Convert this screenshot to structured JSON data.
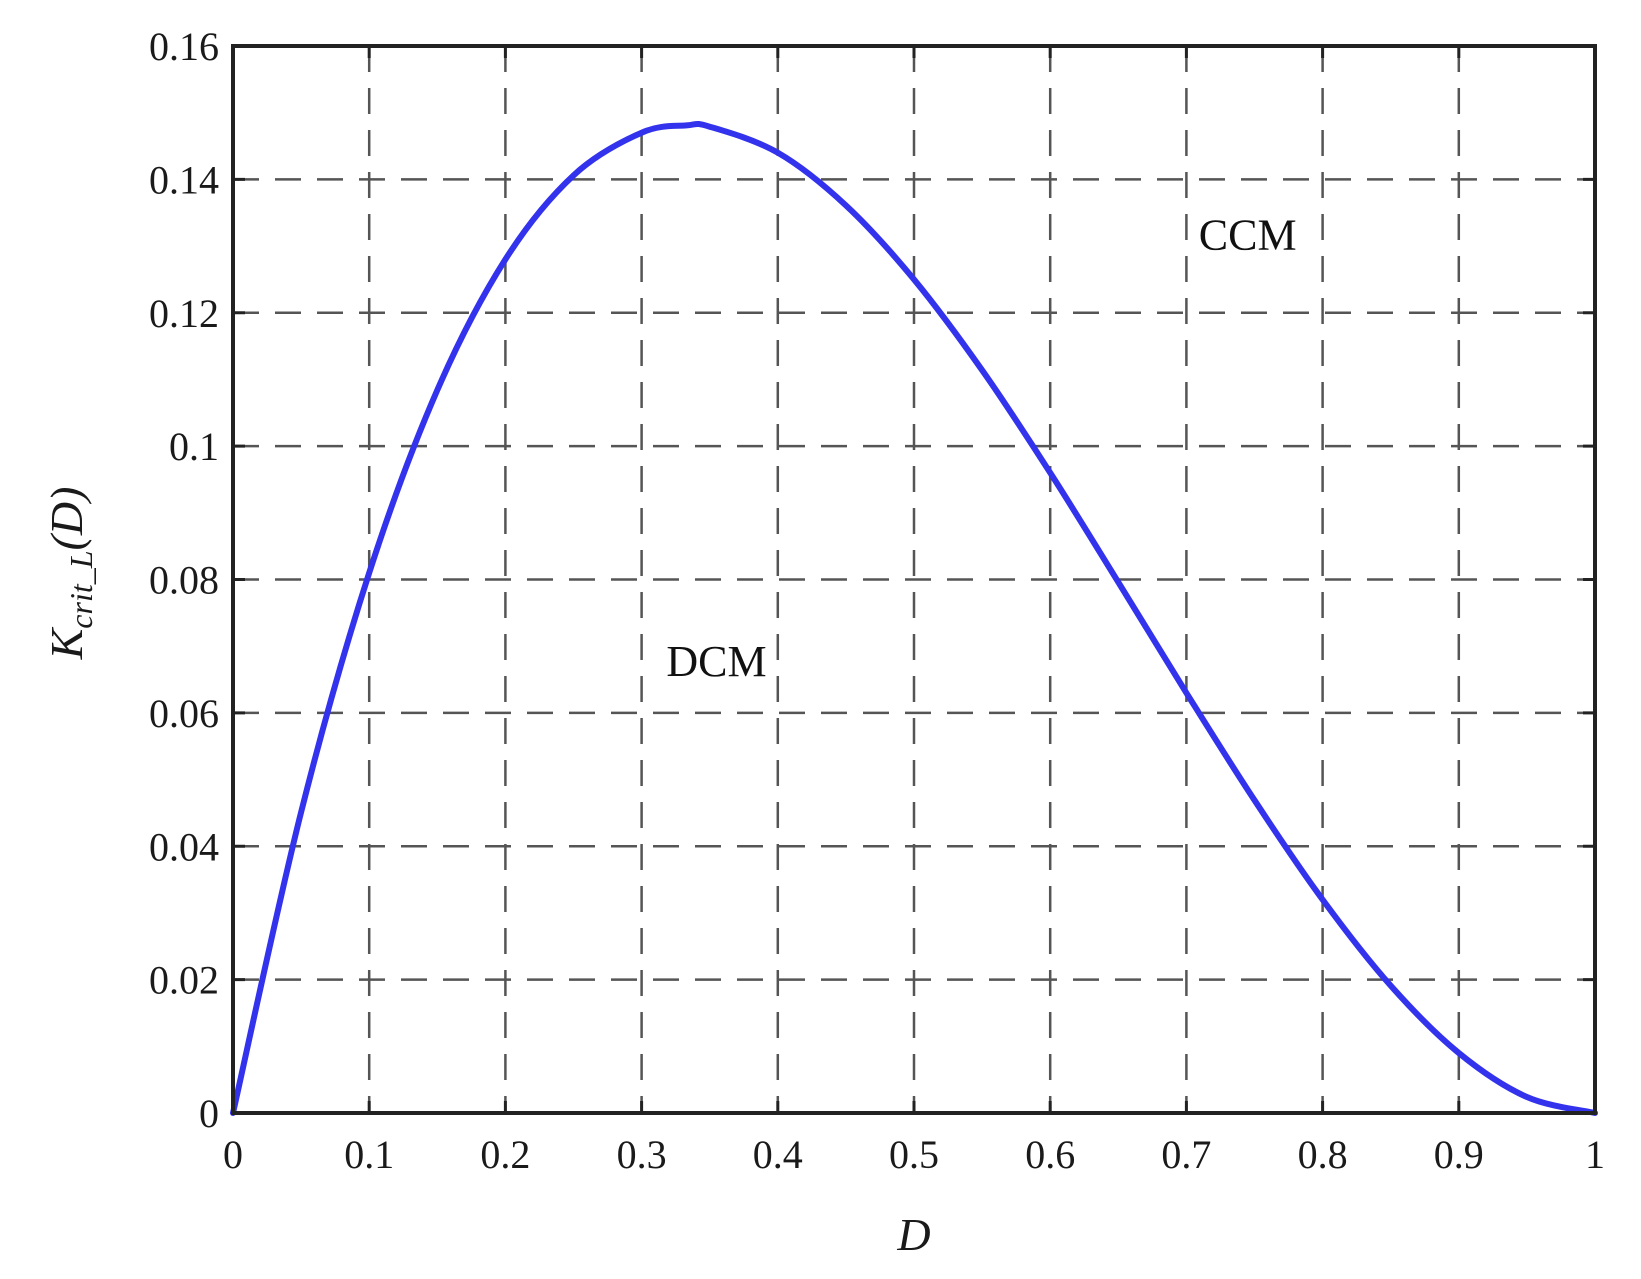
{
  "chart_data": {
    "type": "line",
    "title": "",
    "xlabel": "D",
    "ylabel": {
      "main": "K",
      "subscript": "crit_L",
      "suffix": "(D)"
    },
    "xlim": [
      0,
      1
    ],
    "ylim": [
      0,
      0.16
    ],
    "x_ticks": [
      0,
      0.1,
      0.2,
      0.3,
      0.4,
      0.5,
      0.6,
      0.7,
      0.8,
      0.9,
      1
    ],
    "x_tick_labels": [
      "0",
      "0.1",
      "0.2",
      "0.3",
      "0.4",
      "0.5",
      "0.6",
      "0.7",
      "0.8",
      "0.9",
      "1"
    ],
    "y_ticks": [
      0,
      0.02,
      0.04,
      0.06,
      0.08,
      0.1,
      0.12,
      0.14,
      0.16
    ],
    "y_tick_labels": [
      "0",
      "0.02",
      "0.04",
      "0.06",
      "0.08",
      "0.1",
      "0.12",
      "0.14",
      "0.16"
    ],
    "grid": true,
    "grid_style": "dashed",
    "series": [
      {
        "color": "#3333ee",
        "x": [
          0,
          0.05,
          0.1,
          0.15,
          0.2,
          0.25,
          0.3,
          0.333,
          0.35,
          0.4,
          0.45,
          0.5,
          0.55,
          0.6,
          0.65,
          0.7,
          0.75,
          0.8,
          0.85,
          0.9,
          0.95,
          1
        ],
        "y": [
          0,
          0.0451,
          0.081,
          0.1084,
          0.128,
          0.1406,
          0.147,
          0.1481,
          0.1479,
          0.144,
          0.1361,
          0.125,
          0.1114,
          0.096,
          0.0796,
          0.063,
          0.0469,
          0.032,
          0.0191,
          0.009,
          0.0024,
          0
        ]
      }
    ],
    "annotations": [
      {
        "text": "CCM",
        "x": 0.745,
        "y": 0.1295
      },
      {
        "text": "DCM",
        "x": 0.355,
        "y": 0.0655
      }
    ]
  }
}
